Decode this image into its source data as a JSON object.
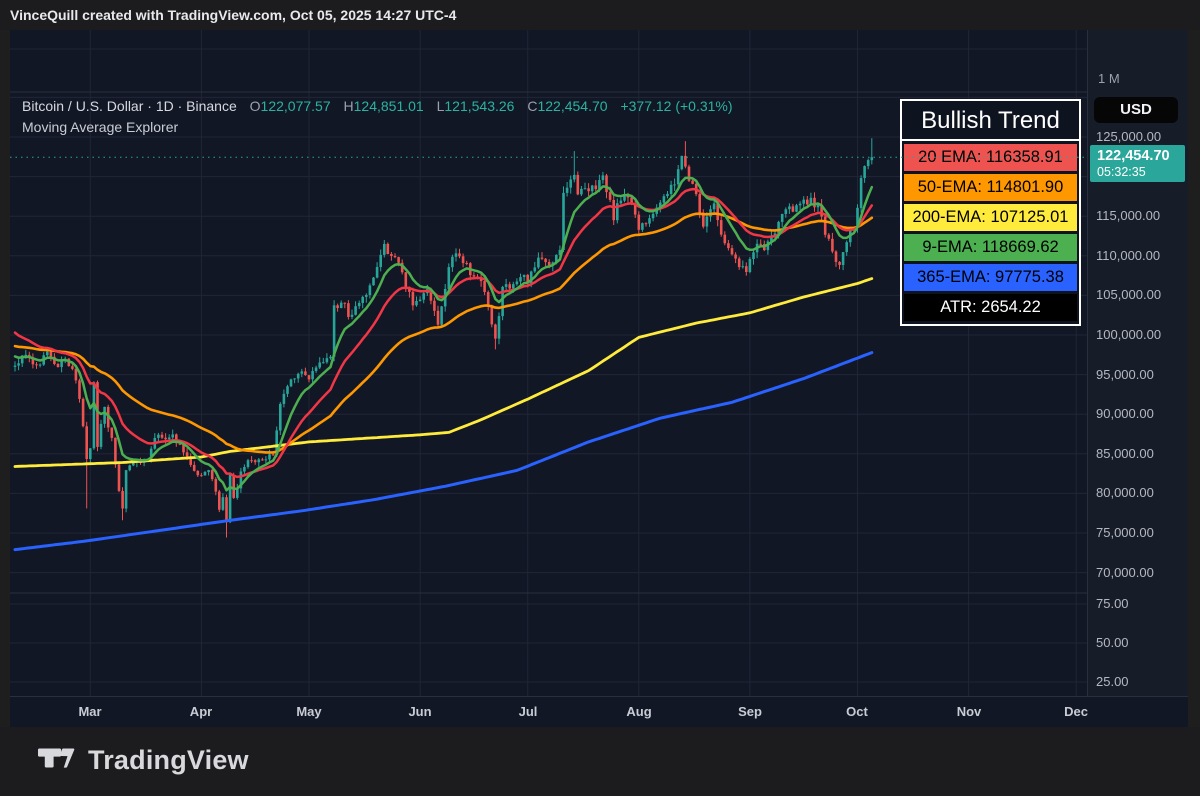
{
  "topbar": {
    "attribution": "VinceQuill created with TradingView.com, Oct 05, 2025 14:27 UTC-4"
  },
  "title": {
    "symbol": "Bitcoin / U.S. Dollar · 1D · Binance",
    "o_label": "O",
    "o": "122,077.57",
    "h_label": "H",
    "h": "124,851.01",
    "l_label": "L",
    "l": "121,543.26",
    "c_label": "C",
    "c": "122,454.70",
    "change": "+377.12 (+0.31%)",
    "subtitle": "Moving Average Explorer"
  },
  "legend": {
    "header": "Bullish Trend",
    "rows": [
      {
        "label": "20 EMA: 116358.91",
        "bg": "#ef5350",
        "fg": "#000000"
      },
      {
        "label": "50-EMA: 114801.90",
        "bg": "#ff9800",
        "fg": "#000000"
      },
      {
        "label": "200-EMA: 107125.01",
        "bg": "#ffeb3b",
        "fg": "#000000"
      },
      {
        "label": "9-EMA: 118669.62",
        "bg": "#4caf50",
        "fg": "#000000"
      },
      {
        "label": "365-EMA: 97775.38",
        "bg": "#2962ff",
        "fg": "#000000"
      },
      {
        "label": "ATR: 2654.22",
        "bg": "#000000",
        "fg": "#ffffff"
      }
    ]
  },
  "price_axis": {
    "currency": "USD",
    "pane_top_label": "1 M",
    "labels": [
      "125,000.00",
      "115,000.00",
      "110,000.00",
      "105,000.00",
      "100,000.00",
      "95,000.00",
      "90,000.00",
      "85,000.00",
      "80,000.00",
      "75,000.00",
      "70,000.00"
    ],
    "label_values": [
      125000,
      115000,
      110000,
      105000,
      100000,
      95000,
      90000,
      85000,
      80000,
      75000,
      70000
    ],
    "lower_labels": [
      "75.00",
      "50.00",
      "25.00"
    ],
    "lower_values": [
      75,
      50,
      25
    ],
    "price_badge": {
      "price": "122,454.70",
      "countdown": "05:32:35",
      "color": "#2aa79a"
    }
  },
  "time_axis": {
    "months": [
      "Mar",
      "Apr",
      "May",
      "Jun",
      "Jul",
      "Aug",
      "Sep",
      "Oct",
      "Nov",
      "Dec"
    ]
  },
  "footer": {
    "logo_text": "TradingView"
  },
  "chart_data": {
    "type": "candlestick",
    "pair": "Bitcoin / U.S. Dollar",
    "timeframe": "1D",
    "exchange": "Binance",
    "last_candle": {
      "open": 122077.57,
      "high": 124851.01,
      "low": 121543.26,
      "close": 122454.7
    },
    "change_abs": 377.12,
    "change_pct": 0.31,
    "price_line": 122454.7,
    "atr": 2654.22,
    "up_color": "#26a69a",
    "down_color": "#ef5350",
    "days": 240,
    "y_ticks_main": [
      130000,
      125000,
      120000,
      115000,
      110000,
      105000,
      100000,
      95000,
      90000,
      85000,
      80000,
      75000,
      70000
    ],
    "y_ticks_lower": [
      75,
      50,
      25
    ],
    "month_day_offsets": [
      21,
      52,
      82,
      113,
      143,
      174,
      205,
      235,
      266,
      296
    ],
    "close_keyframes": [
      [
        0,
        96400
      ],
      [
        3,
        97800
      ],
      [
        6,
        96300
      ],
      [
        9,
        97400
      ],
      [
        12,
        95800
      ],
      [
        14,
        96900
      ],
      [
        16,
        96100
      ],
      [
        18,
        91500
      ],
      [
        19,
        88100
      ],
      [
        20,
        84300
      ],
      [
        21,
        86000
      ],
      [
        22,
        94000
      ],
      [
        23,
        86100
      ],
      [
        25,
        90600
      ],
      [
        27,
        86700
      ],
      [
        29,
        80700
      ],
      [
        30,
        78500
      ],
      [
        31,
        82900
      ],
      [
        34,
        83900
      ],
      [
        37,
        84100
      ],
      [
        39,
        86800
      ],
      [
        44,
        87500
      ],
      [
        48,
        84300
      ],
      [
        51,
        82500
      ],
      [
        54,
        83100
      ],
      [
        57,
        78200
      ],
      [
        58,
        79200
      ],
      [
        59,
        76300
      ],
      [
        60,
        82500
      ],
      [
        61,
        79600
      ],
      [
        64,
        83700
      ],
      [
        68,
        84100
      ],
      [
        72,
        85200
      ],
      [
        74,
        91200
      ],
      [
        77,
        94700
      ],
      [
        80,
        95000
      ],
      [
        82,
        94200
      ],
      [
        85,
        96900
      ],
      [
        88,
        97100
      ],
      [
        89,
        103200
      ],
      [
        92,
        104100
      ],
      [
        93,
        102800
      ],
      [
        96,
        103500
      ],
      [
        99,
        106400
      ],
      [
        102,
        109700
      ],
      [
        103,
        111000
      ],
      [
        107,
        109400
      ],
      [
        111,
        103900
      ],
      [
        115,
        105600
      ],
      [
        118,
        101600
      ],
      [
        122,
        110200
      ],
      [
        125,
        109000
      ],
      [
        130,
        106800
      ],
      [
        134,
        99200
      ],
      [
        136,
        106000
      ],
      [
        141,
        107000
      ],
      [
        143,
        107100
      ],
      [
        146,
        109600
      ],
      [
        150,
        108900
      ],
      [
        152,
        111300
      ],
      [
        153,
        117500
      ],
      [
        156,
        119900
      ],
      [
        157,
        117700
      ],
      [
        160,
        118000
      ],
      [
        164,
        120000
      ],
      [
        167,
        115100
      ],
      [
        170,
        118000
      ],
      [
        173,
        115800
      ],
      [
        174,
        113400
      ],
      [
        180,
        117000
      ],
      [
        184,
        118800
      ],
      [
        186,
        122800
      ],
      [
        187,
        121000
      ],
      [
        190,
        117300
      ],
      [
        192,
        113500
      ],
      [
        195,
        116900
      ],
      [
        197,
        113000
      ],
      [
        202,
        108400
      ],
      [
        204,
        108200
      ],
      [
        207,
        111700
      ],
      [
        209,
        110700
      ],
      [
        215,
        115500
      ],
      [
        217,
        116000
      ],
      [
        222,
        117400
      ],
      [
        225,
        115300
      ],
      [
        226,
        112800
      ],
      [
        229,
        109100
      ],
      [
        230,
        109300
      ],
      [
        233,
        112800
      ],
      [
        234,
        114000
      ],
      [
        235,
        116500
      ],
      [
        236,
        119400
      ],
      [
        237,
        120700
      ],
      [
        238,
        122077
      ],
      [
        239,
        122454.7
      ]
    ],
    "wick_overrides": {
      "20": {
        "low": 78100
      },
      "30": {
        "low": 76600
      },
      "59": {
        "low": 74436
      },
      "103": {
        "high": 112000
      },
      "134": {
        "low": 98200
      },
      "156": {
        "high": 123218
      },
      "187": {
        "high": 124474
      },
      "229": {
        "low": 108600
      },
      "239": {
        "high": 124851.01,
        "low": 121543.26
      }
    },
    "emas_computed": [
      {
        "name": "50-EMA",
        "period": 50,
        "seed": 98600,
        "end": 114801.9,
        "color": "#ff9800",
        "width": 2.6
      },
      {
        "name": "20 EMA",
        "period": 20,
        "seed": 100300,
        "end": 116358.91,
        "color": "#f23645",
        "width": 2.5
      },
      {
        "name": "9-EMA",
        "period": 9,
        "seed": 97300,
        "end": 118669.62,
        "color": "#4caf50",
        "width": 2.5
      }
    ],
    "emas_keyframed": [
      {
        "name": "365-EMA",
        "end": 97775.38,
        "color": "#2962ff",
        "width": 3,
        "keyframes": [
          [
            0,
            72900
          ],
          [
            20,
            74000
          ],
          [
            40,
            75300
          ],
          [
            60,
            76600
          ],
          [
            80,
            77800
          ],
          [
            100,
            79200
          ],
          [
            120,
            80900
          ],
          [
            140,
            82900
          ],
          [
            160,
            86500
          ],
          [
            180,
            89500
          ],
          [
            200,
            91500
          ],
          [
            220,
            94500
          ],
          [
            239,
            97775.38
          ]
        ]
      },
      {
        "name": "200-EMA",
        "end": 107125.01,
        "color": "#ffeb3b",
        "width": 2.8,
        "keyframes": [
          [
            0,
            83400
          ],
          [
            30,
            83900
          ],
          [
            52,
            84600
          ],
          [
            60,
            85300
          ],
          [
            82,
            86500
          ],
          [
            113,
            87400
          ],
          [
            121,
            87700
          ],
          [
            130,
            89300
          ],
          [
            143,
            91900
          ],
          [
            160,
            95500
          ],
          [
            174,
            99700
          ],
          [
            190,
            101500
          ],
          [
            205,
            102800
          ],
          [
            220,
            104800
          ],
          [
            235,
            106500
          ],
          [
            239,
            107125.01
          ]
        ]
      }
    ]
  }
}
